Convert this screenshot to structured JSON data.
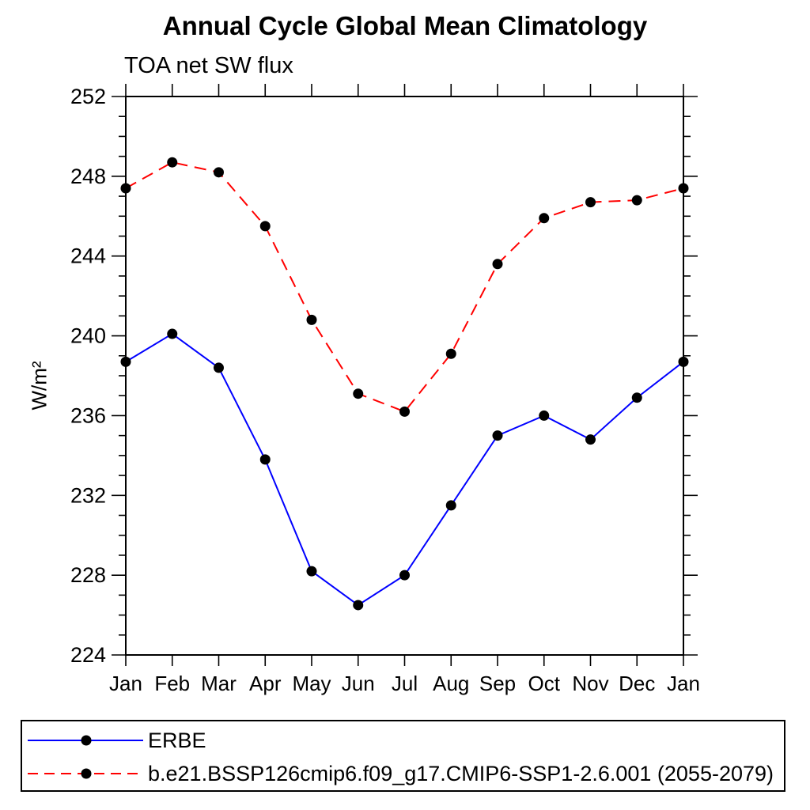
{
  "chart_data": {
    "type": "line",
    "title": "Annual Cycle Global Mean Climatology",
    "subtitle": "TOA net SW flux",
    "ylabel": "W/m²",
    "xlabel": "",
    "categories": [
      "Jan",
      "Feb",
      "Mar",
      "Apr",
      "May",
      "Jun",
      "Jul",
      "Aug",
      "Sep",
      "Oct",
      "Nov",
      "Dec",
      "Jan"
    ],
    "ylim": [
      224,
      252
    ],
    "ytick_major_interval": 4,
    "ytick_minor_interval": 1,
    "ytick_major_labels": [
      "224",
      "228",
      "232",
      "236",
      "240",
      "244",
      "248",
      "252"
    ],
    "grid": false,
    "legend_position": "bottom-left-box",
    "frame_color": "#000000",
    "background_color": "#ffffff",
    "series": [
      {
        "name": "ERBE",
        "color": "#0000ff",
        "line_style": "solid",
        "marker": "filled-circle",
        "marker_color": "#000000",
        "values": [
          238.7,
          240.1,
          238.4,
          233.8,
          228.2,
          226.5,
          228.0,
          231.5,
          235.0,
          236.0,
          234.8,
          236.9,
          238.7
        ]
      },
      {
        "name": "b.e21.BSSP126cmip6.f09_g17.CMIP6-SSP1-2.6.001 (2055-2079)",
        "color": "#ff0000",
        "line_style": "dashed",
        "marker": "filled-circle",
        "marker_color": "#000000",
        "values": [
          247.4,
          248.7,
          248.2,
          245.5,
          240.8,
          237.1,
          236.2,
          239.1,
          243.6,
          245.9,
          246.7,
          246.8,
          247.4
        ]
      }
    ]
  }
}
